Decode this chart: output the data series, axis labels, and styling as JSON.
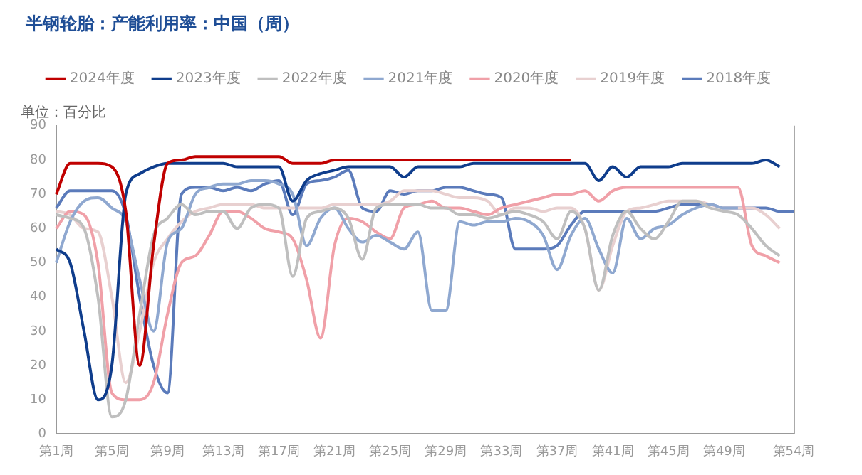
{
  "chart_data": {
    "type": "line",
    "title": "半钢轮胎：产能利用率：中国（周）",
    "ylabel": "单位：百分比",
    "categories": [
      "第1周",
      null,
      null,
      null,
      "第5周",
      null,
      null,
      null,
      "第9周",
      null,
      null,
      null,
      "第13周",
      null,
      null,
      null,
      "第17周",
      null,
      null,
      null,
      "第21周",
      null,
      null,
      null,
      "第25周",
      null,
      null,
      null,
      "第29周",
      null,
      null,
      null,
      "第33周",
      null,
      null,
      null,
      "第37周",
      null,
      null,
      null,
      "第41周",
      null,
      null,
      null,
      "第45周",
      null,
      null,
      null,
      "第49周",
      null,
      null,
      null,
      null,
      "第54周"
    ],
    "ylim": [
      0,
      90
    ],
    "yticks": [
      0,
      10,
      20,
      30,
      40,
      50,
      60,
      70,
      80,
      90
    ],
    "grid": false,
    "legend": "top",
    "marker": "none",
    "line_style": "solid",
    "series": [
      {
        "name": "2024年度",
        "color": "#c00000",
        "values": [
          70,
          79,
          79,
          79,
          78,
          65,
          20,
          55,
          79,
          80,
          81,
          81,
          81,
          81,
          81,
          81,
          81,
          79,
          79,
          79,
          80,
          80,
          80,
          80,
          80,
          80,
          80,
          80,
          80,
          80,
          80,
          80,
          80,
          80,
          80,
          80,
          80,
          80,
          null,
          null,
          null,
          null,
          null,
          null,
          null,
          null,
          null,
          null,
          null,
          null,
          null,
          null,
          null,
          null
        ]
      },
      {
        "name": "2023年度",
        "color": "#0f3d8c",
        "values": [
          54,
          50,
          30,
          10,
          20,
          70,
          76,
          78,
          79,
          79,
          79,
          79,
          79,
          78,
          78,
          78,
          78,
          68,
          74,
          76,
          77,
          78,
          78,
          78,
          78,
          75,
          78,
          78,
          78,
          78,
          79,
          79,
          79,
          79,
          79,
          79,
          79,
          79,
          79,
          74,
          78,
          75,
          78,
          78,
          78,
          79,
          79,
          79,
          79,
          79,
          79,
          80,
          78,
          null
        ]
      },
      {
        "name": "2022年度",
        "color": "#bfbfbf",
        "values": [
          64,
          63,
          60,
          40,
          5,
          10,
          35,
          58,
          63,
          67,
          64,
          65,
          65,
          60,
          66,
          67,
          66,
          46,
          63,
          65,
          66,
          63,
          51,
          66,
          67,
          67,
          67,
          66,
          66,
          64,
          64,
          63,
          64,
          65,
          64,
          62,
          57,
          65,
          60,
          42,
          58,
          65,
          60,
          57,
          62,
          68,
          68,
          66,
          65,
          64,
          60,
          55,
          52,
          null
        ]
      },
      {
        "name": "2021年度",
        "color": "#8fa8d0",
        "values": [
          50,
          62,
          68,
          69,
          66,
          62,
          45,
          30,
          56,
          60,
          70,
          72,
          73,
          73,
          74,
          74,
          73,
          70,
          55,
          63,
          66,
          60,
          56,
          58,
          56,
          54,
          59,
          36,
          36,
          62,
          61,
          62,
          62,
          63,
          62,
          58,
          48,
          58,
          63,
          54,
          47,
          63,
          57,
          60,
          61,
          64,
          66,
          67,
          66,
          66,
          null,
          null,
          null,
          null
        ]
      },
      {
        "name": "2020年度",
        "color": "#f0a0a8",
        "values": [
          60,
          65,
          64,
          50,
          12,
          10,
          10,
          15,
          35,
          50,
          52,
          58,
          65,
          65,
          63,
          60,
          59,
          57,
          45,
          28,
          55,
          63,
          62,
          59,
          57,
          66,
          67,
          68,
          66,
          66,
          65,
          64,
          66,
          67,
          68,
          69,
          70,
          70,
          71,
          68,
          71,
          72,
          72,
          72,
          72,
          72,
          72,
          72,
          72,
          72,
          55,
          52,
          50,
          null
        ]
      },
      {
        "name": "2019年度",
        "color": "#e8d0d0",
        "values": [
          65,
          64,
          60,
          59,
          40,
          15,
          30,
          50,
          57,
          62,
          65,
          66,
          67,
          67,
          67,
          66,
          66,
          66,
          66,
          66,
          67,
          67,
          67,
          67,
          68,
          71,
          71,
          71,
          70,
          69,
          69,
          68,
          64,
          66,
          66,
          65,
          66,
          66,
          60,
          42,
          55,
          65,
          66,
          67,
          68,
          68,
          68,
          67,
          66,
          66,
          66,
          64,
          60,
          null
        ]
      },
      {
        "name": "2018年度",
        "color": "#5b7bbb",
        "values": [
          66,
          71,
          71,
          71,
          71,
          64,
          40,
          20,
          12,
          70,
          72,
          72,
          71,
          72,
          71,
          73,
          74,
          64,
          73,
          74,
          75,
          77,
          66,
          65,
          71,
          70,
          71,
          71,
          72,
          72,
          71,
          70,
          69,
          54,
          54,
          54,
          55,
          61,
          65,
          65,
          65,
          65,
          65,
          65,
          66,
          67,
          67,
          67,
          66,
          66,
          66,
          66,
          65,
          65
        ]
      }
    ]
  }
}
